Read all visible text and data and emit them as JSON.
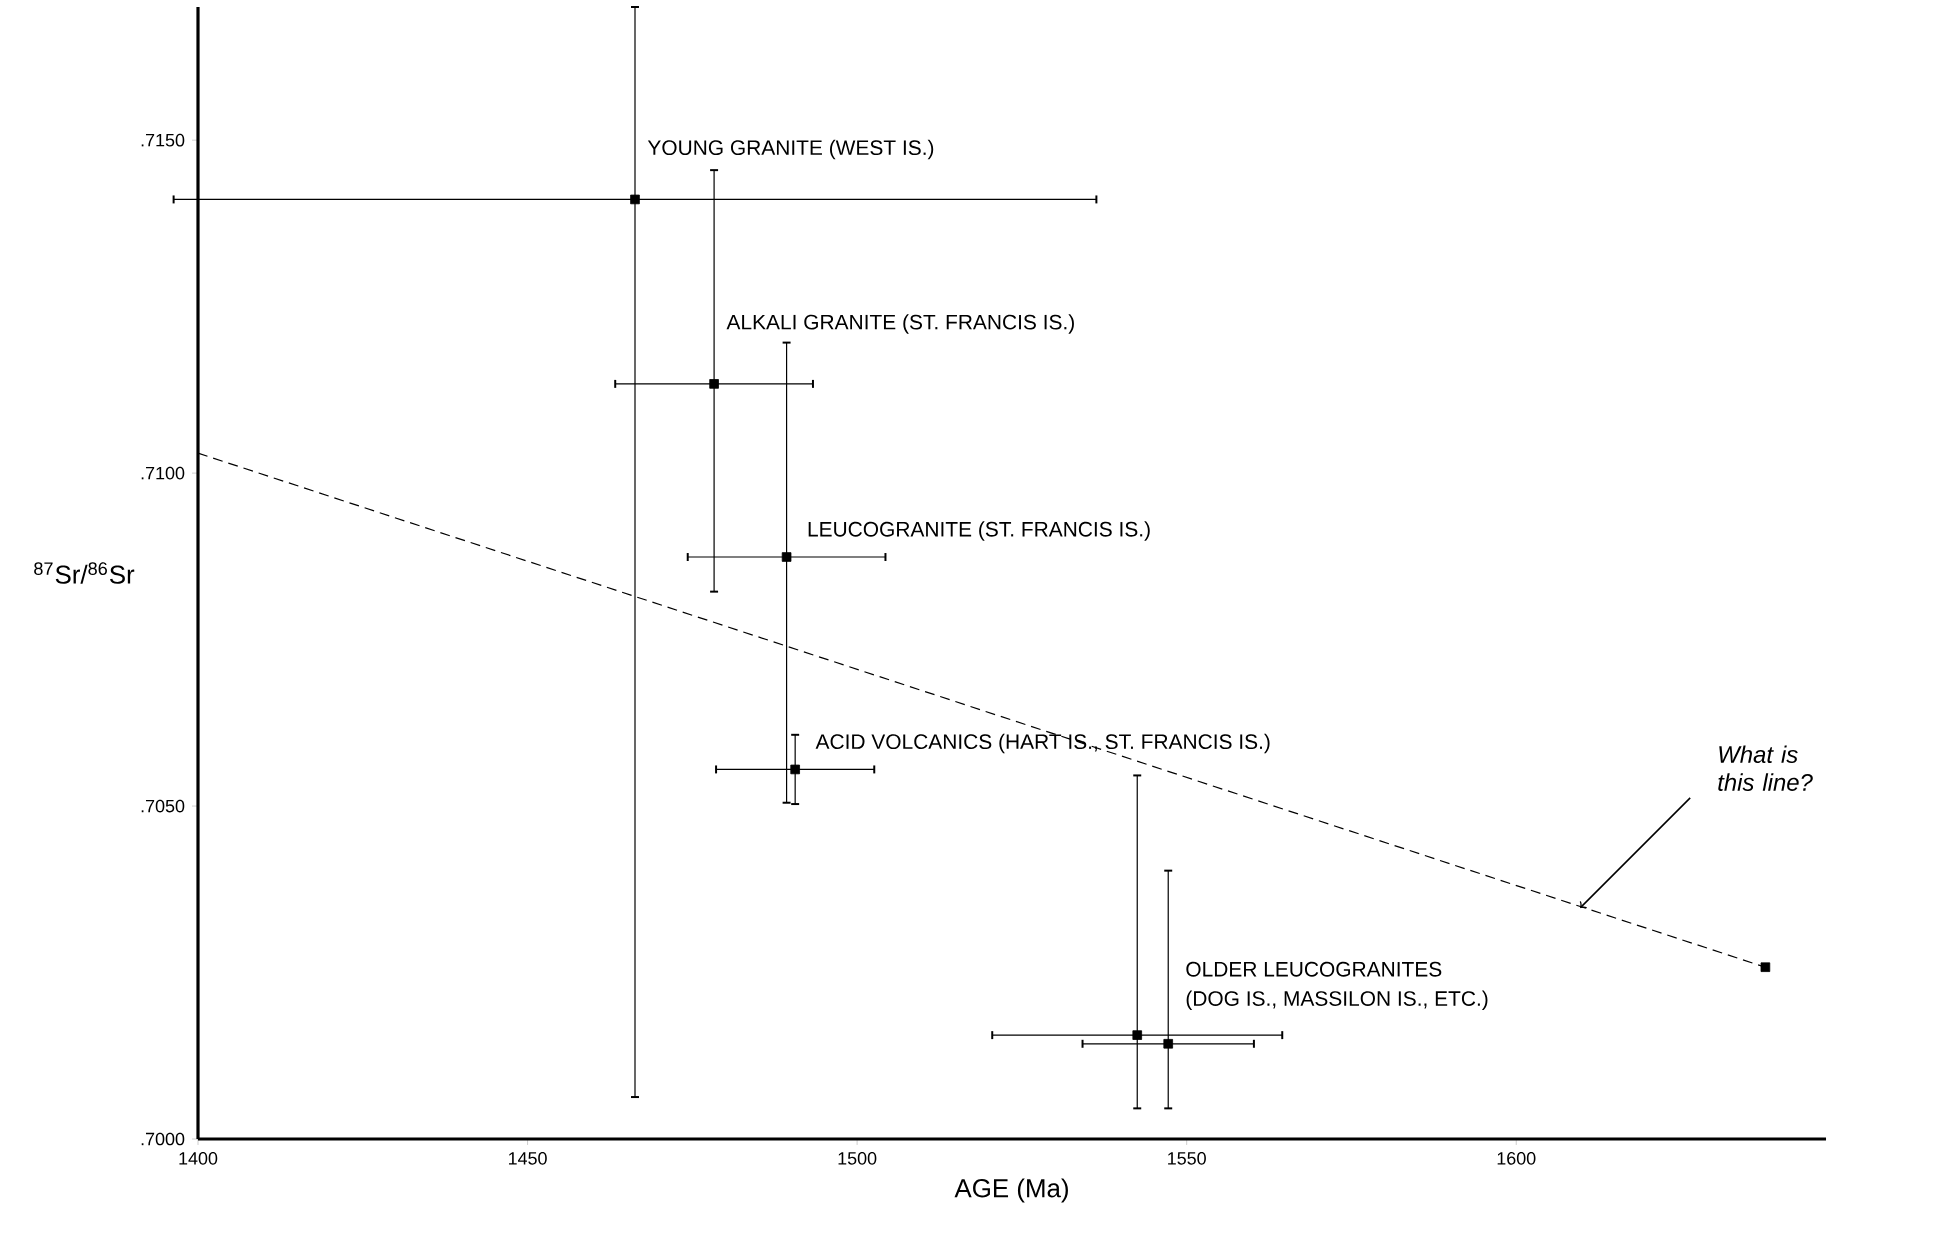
{
  "chart_data": {
    "type": "scatter",
    "xlabel": "AGE (Ma)",
    "ylabel": "$^{87}$Sr/$^{86}$Sr",
    "xlim": [
      1400,
      1647
    ],
    "ylim": [
      0.7,
      0.717
    ],
    "xticks": [
      1400,
      1450,
      1500,
      1550,
      1600
    ],
    "yticks": [
      {
        "value": 0.7,
        "label": ".7000"
      },
      {
        "value": 0.705,
        "label": ".7050"
      },
      {
        "value": 0.71,
        "label": ".7100"
      },
      {
        "value": 0.715,
        "label": ".7150"
      }
    ],
    "grid": false,
    "series": [
      {
        "color": "#000000",
        "marker": "square",
        "x": [
          1466.3,
          1478.3,
          1489.3,
          1490.6,
          1542.5,
          1547.2
        ],
        "values": [
          0.71411,
          0.71134,
          0.70874,
          0.70555,
          0.70156,
          0.70143
        ],
        "errors": [
          [
            0.70063,
            0.717
          ],
          [
            0.70822,
            0.71455
          ],
          [
            0.70505,
            0.71196
          ],
          [
            0.70503,
            0.70607
          ],
          [
            0.70046,
            0.70546
          ],
          [
            0.70046,
            0.70403
          ]
        ],
        "xerrors": [
          70,
          15,
          15,
          12,
          22,
          13
        ]
      },
      {
        "type": "line",
        "color": "#000000",
        "marker": "none",
        "line_style": "dashed",
        "x": [
          1400,
          1637.8
        ],
        "values": [
          0.7103,
          0.70258
        ]
      },
      {
        "color": "#000000",
        "marker": "square",
        "x": [
          1637.8
        ],
        "values": [
          0.70258
        ]
      }
    ],
    "annotations": [
      {
        "text": "YOUNG GRANITE (WEST IS.)",
        "x": 1466.3,
        "y": 0.71411
      },
      {
        "text": "ALKALI GRANITE (ST. FRANCIS IS.)",
        "x": 1478.3,
        "y": 0.71134
      },
      {
        "text": "LEUCOGRANITE (ST. FRANCIS IS.)",
        "x": 1489.3,
        "y": 0.70874
      },
      {
        "text": "ACID VOLCANICS (HART IS., ST. FRANCIS IS.)",
        "x": 1490.6,
        "y": 0.70555
      },
      "OLDER LEUCOGRANITES",
      "(DOG IS., MASSILON IS., ETC.)",
      {
        "text": "What is this line?",
        "x": 1609.7,
        "y": 0.70347
      }
    ]
  }
}
